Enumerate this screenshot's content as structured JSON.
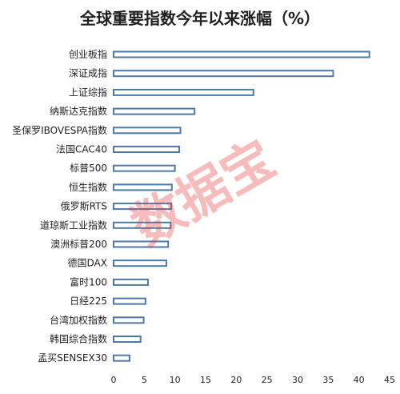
{
  "chart_data": {
    "type": "bar",
    "orientation": "horizontal",
    "title": "全球重要指数今年以来涨幅（%）",
    "xlabel": "",
    "ylabel": "",
    "xlim": [
      0,
      45
    ],
    "x_ticks": [
      0,
      5,
      10,
      15,
      20,
      25,
      30,
      35,
      40,
      45
    ],
    "grid": false,
    "legend": "none",
    "categories": [
      "创业板指",
      "深证成指",
      "上证综指",
      "纳斯达克指数",
      "圣保罗IBOVESPA指数",
      "法国CAC40",
      "标普500",
      "恒生指数",
      "俄罗斯RTS",
      "道琼斯工业指数",
      "澳洲标普200",
      "德国DAX",
      "富时100",
      "日经225",
      "台湾加权指数",
      "韩国综合指数",
      "孟买SENSEX30"
    ],
    "values": [
      41.7,
      35.8,
      22.8,
      13.2,
      10.9,
      10.7,
      10.0,
      9.5,
      9.4,
      9.3,
      8.9,
      8.6,
      5.6,
      5.2,
      4.9,
      4.4,
      2.6
    ],
    "bar_style": {
      "fill": "#ffffff",
      "stroke": "#4e79a7"
    }
  },
  "watermark": "数据宝"
}
